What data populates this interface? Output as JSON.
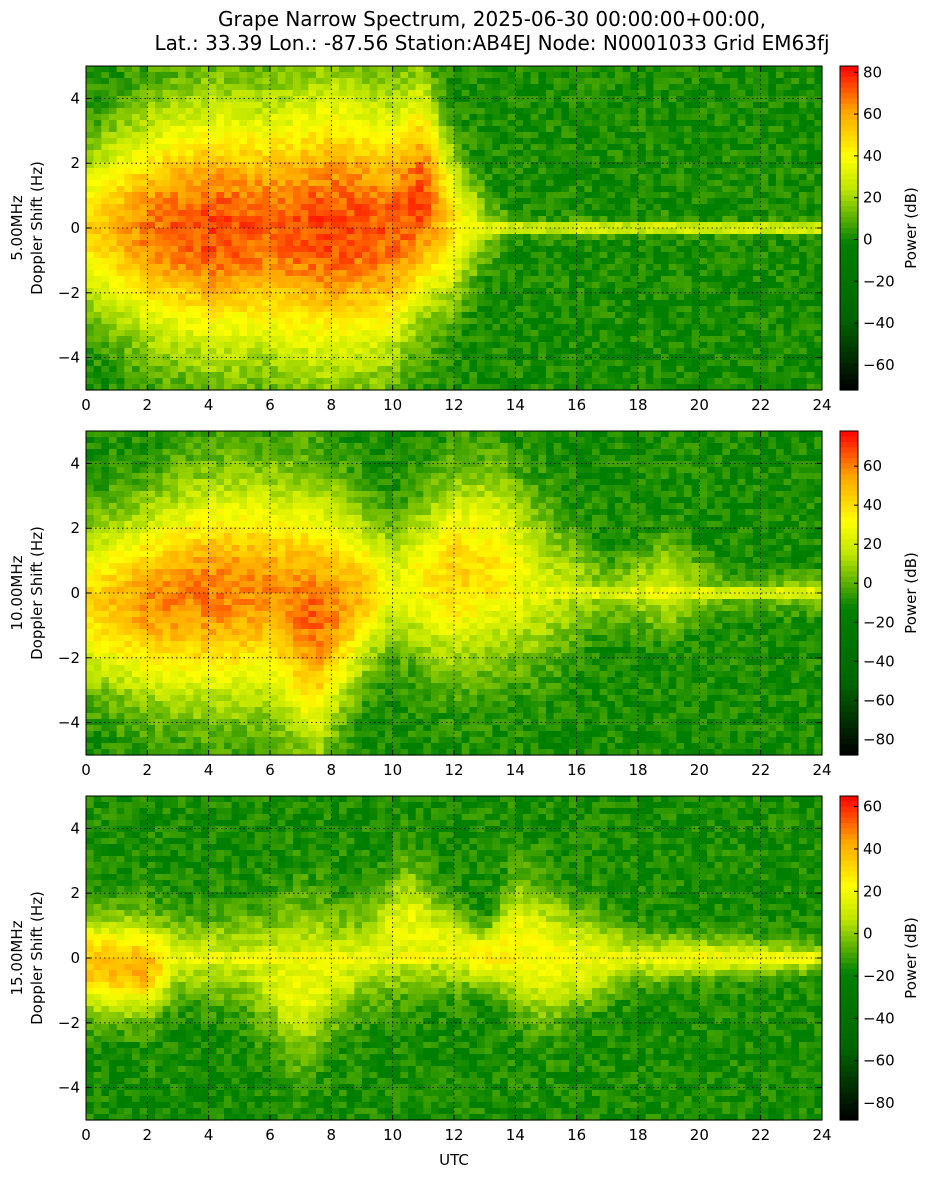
{
  "figure": {
    "title_line1": "Grape Narrow Spectrum, 2025-06-30 00:00:00+00:00,",
    "title_line2": "Lat.: 33.39 Lon.: -87.56 Station:AB4EJ Node: N0001033 Grid EM63fj",
    "xlabel": "UTC",
    "colorbar_label": "Power (dB)",
    "colormap": [
      "#000000",
      "#006400",
      "#008000",
      "#bfe600",
      "#ffff00",
      "#ffa500",
      "#ff0000"
    ]
  },
  "chart_data": [
    {
      "type": "heatmap",
      "ylabel_line1": "5.00MHz",
      "ylabel_line2": "Doppler Shift (Hz)",
      "xlabel": "",
      "xlim": [
        0,
        24
      ],
      "ylim": [
        -5,
        5
      ],
      "xticks": [
        0,
        2,
        4,
        6,
        8,
        10,
        12,
        14,
        16,
        18,
        20,
        22,
        24
      ],
      "yticks": [
        -4,
        -2,
        0,
        2,
        4
      ],
      "grid": true,
      "colorbar": {
        "range": [
          -72,
          83
        ],
        "ticks": [
          -60,
          -40,
          -20,
          0,
          20,
          40,
          60,
          80
        ],
        "label": "Power (dB)"
      },
      "activity": [
        {
          "t": 0,
          "offset": 0.0,
          "strength": 0.6,
          "spread": 2.5
        },
        {
          "t": 2,
          "offset": 0.0,
          "strength": 0.85,
          "spread": 3.5
        },
        {
          "t": 4,
          "offset": 0.0,
          "strength": 0.95,
          "spread": 4.0
        },
        {
          "t": 6,
          "offset": 0.0,
          "strength": 0.9,
          "spread": 4.0
        },
        {
          "t": 8,
          "offset": 0.0,
          "strength": 0.95,
          "spread": 4.5
        },
        {
          "t": 10,
          "offset": 0.0,
          "strength": 0.9,
          "spread": 4.0
        },
        {
          "t": 11,
          "offset": 1.0,
          "strength": 0.95,
          "spread": 3.5
        },
        {
          "t": 12,
          "offset": 0.0,
          "strength": 0.55,
          "spread": 2.5
        },
        {
          "t": 13,
          "offset": 0.0,
          "strength": 0.25,
          "spread": 1.2
        },
        {
          "t": 14,
          "offset": 0.0,
          "strength": 0.1,
          "spread": 0.4
        },
        {
          "t": 24,
          "offset": 0.0,
          "strength": 0.1,
          "spread": 0.3
        }
      ]
    },
    {
      "type": "heatmap",
      "ylabel_line1": "10.00MHz",
      "ylabel_line2": "Doppler Shift (Hz)",
      "xlabel": "",
      "xlim": [
        0,
        24
      ],
      "ylim": [
        -5,
        5
      ],
      "xticks": [
        0,
        2,
        4,
        6,
        8,
        10,
        12,
        14,
        16,
        18,
        20,
        22,
        24
      ],
      "yticks": [
        -4,
        -2,
        0,
        2,
        4
      ],
      "grid": true,
      "colorbar": {
        "range": [
          -88,
          78
        ],
        "ticks": [
          -80,
          -60,
          -40,
          -20,
          0,
          20,
          40,
          60
        ],
        "label": "Power (dB)"
      },
      "activity": [
        {
          "t": 0,
          "offset": -0.4,
          "strength": 0.6,
          "spread": 2.5
        },
        {
          "t": 2,
          "offset": -0.3,
          "strength": 0.8,
          "spread": 3.0
        },
        {
          "t": 4,
          "offset": 0.0,
          "strength": 0.85,
          "spread": 3.5
        },
        {
          "t": 6,
          "offset": 0.0,
          "strength": 0.8,
          "spread": 3.5
        },
        {
          "t": 7.5,
          "offset": -0.8,
          "strength": 0.9,
          "spread": 4.0
        },
        {
          "t": 9,
          "offset": 0.0,
          "strength": 0.7,
          "spread": 2.5
        },
        {
          "t": 10,
          "offset": 0.2,
          "strength": 0.4,
          "spread": 2.0
        },
        {
          "t": 12,
          "offset": 0.6,
          "strength": 0.65,
          "spread": 3.0
        },
        {
          "t": 13.5,
          "offset": 0.8,
          "strength": 0.55,
          "spread": 3.0
        },
        {
          "t": 15,
          "offset": 0.2,
          "strength": 0.35,
          "spread": 2.5
        },
        {
          "t": 17,
          "offset": 0.0,
          "strength": 0.2,
          "spread": 1.0
        },
        {
          "t": 19,
          "offset": 0.2,
          "strength": 0.35,
          "spread": 1.5
        },
        {
          "t": 21,
          "offset": 0.0,
          "strength": 0.15,
          "spread": 0.6
        },
        {
          "t": 24,
          "offset": 0.0,
          "strength": 0.25,
          "spread": 0.6
        }
      ]
    },
    {
      "type": "heatmap",
      "ylabel_line1": "15.00MHz",
      "ylabel_line2": "Doppler Shift (Hz)",
      "xlabel": "UTC",
      "xlim": [
        0,
        24
      ],
      "ylim": [
        -5,
        5
      ],
      "xticks": [
        0,
        2,
        4,
        6,
        8,
        10,
        12,
        14,
        16,
        18,
        20,
        22,
        24
      ],
      "yticks": [
        -4,
        -2,
        0,
        2,
        4
      ],
      "grid": true,
      "colorbar": {
        "range": [
          -88,
          65
        ],
        "ticks": [
          -80,
          -60,
          -40,
          -20,
          0,
          20,
          40,
          60
        ],
        "label": "Power (dB)"
      },
      "activity": [
        {
          "t": 0,
          "offset": -0.2,
          "strength": 0.7,
          "spread": 1.5
        },
        {
          "t": 2,
          "offset": -0.3,
          "strength": 0.75,
          "spread": 1.5
        },
        {
          "t": 3,
          "offset": 0.0,
          "strength": 0.35,
          "spread": 1.2
        },
        {
          "t": 5,
          "offset": 0.0,
          "strength": 0.3,
          "spread": 1.5
        },
        {
          "t": 7,
          "offset": -0.8,
          "strength": 0.45,
          "spread": 2.5
        },
        {
          "t": 9,
          "offset": 0.0,
          "strength": 0.35,
          "spread": 1.5
        },
        {
          "t": 10.5,
          "offset": 1.0,
          "strength": 0.45,
          "spread": 2.0
        },
        {
          "t": 11.5,
          "offset": 0.5,
          "strength": 0.4,
          "spread": 1.5
        },
        {
          "t": 13,
          "offset": 0.0,
          "strength": 0.55,
          "spread": 0.8
        },
        {
          "t": 14,
          "offset": 0.5,
          "strength": 0.5,
          "spread": 2.0
        },
        {
          "t": 15,
          "offset": 0.0,
          "strength": 0.5,
          "spread": 2.0
        },
        {
          "t": 18,
          "offset": 0.0,
          "strength": 0.35,
          "spread": 0.8
        },
        {
          "t": 21,
          "offset": 0.0,
          "strength": 0.45,
          "spread": 0.6
        },
        {
          "t": 24,
          "offset": 0.0,
          "strength": 0.3,
          "spread": 0.5
        }
      ]
    }
  ]
}
